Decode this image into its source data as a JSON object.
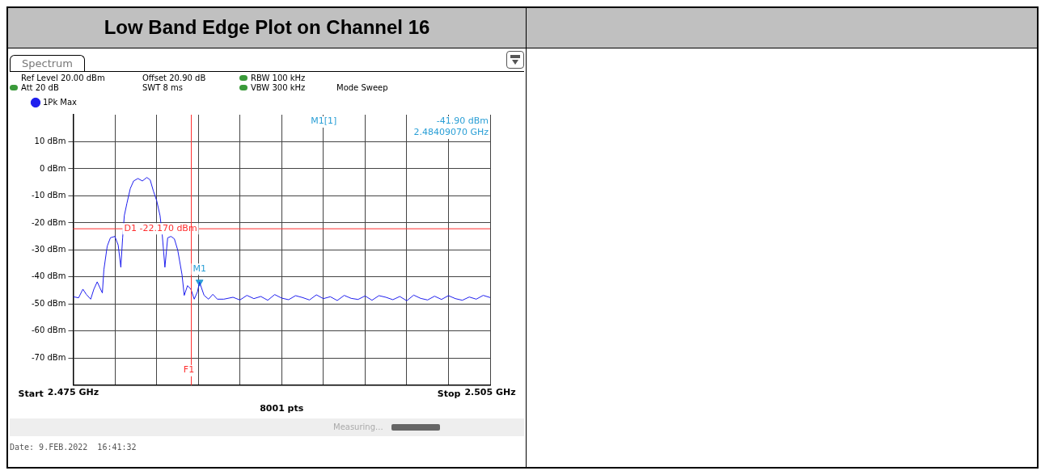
{
  "chart_data": {
    "type": "line",
    "title": "Low Band Edge Plot on Channel 16",
    "subtitle": "Spectrum",
    "xlim": [
      2.475,
      2.505
    ],
    "xticks": [
      {
        "value": 2.475,
        "label": "2.475 GHz"
      },
      {
        "value": 2.478,
        "label": null
      },
      {
        "value": 2.481,
        "label": null
      },
      {
        "value": 2.484,
        "label": null
      },
      {
        "value": 2.487,
        "label": null
      },
      {
        "value": 2.49,
        "label": null
      },
      {
        "value": 2.493,
        "label": null
      },
      {
        "value": 2.496,
        "label": null
      },
      {
        "value": 2.499,
        "label": null
      },
      {
        "value": 2.502,
        "label": null
      },
      {
        "value": 2.505,
        "label": "2.505 GHz"
      }
    ],
    "ylim": [
      -80,
      20
    ],
    "yticks": [
      {
        "value": 10,
        "label": "10 dBm"
      },
      {
        "value": 0,
        "label": "0 dBm"
      },
      {
        "value": -10,
        "label": "-10 dBm"
      },
      {
        "value": -20,
        "label": "-20 dBm"
      },
      {
        "value": -30,
        "label": "-30 dBm"
      },
      {
        "value": -40,
        "label": "-40 dBm"
      },
      {
        "value": -50,
        "label": "-50 dBm"
      },
      {
        "value": -60,
        "label": "-60 dBm"
      },
      {
        "value": -70,
        "label": "-70 dBm"
      }
    ],
    "grid": true,
    "legend": "top left",
    "marker": "none",
    "line_style": "solid",
    "series": [
      {
        "name": "1Pk Max",
        "color": "#1f1fee",
        "x": [
          2.475,
          2.47539,
          2.4757,
          2.47594,
          2.47626,
          2.47649,
          2.47673,
          2.47697,
          2.4771,
          2.47721,
          2.47745,
          2.47768,
          2.478,
          2.47824,
          2.47843,
          2.47856,
          2.47868,
          2.47887,
          2.47911,
          2.47935,
          2.47966,
          2.47998,
          2.4803,
          2.48054,
          2.48077,
          2.48101,
          2.48125,
          2.48141,
          2.4816,
          2.4818,
          2.48204,
          2.48228,
          2.48252,
          2.48283,
          2.48299,
          2.48323,
          2.48347,
          2.48371,
          2.48394,
          2.4840907,
          2.48442,
          2.48474,
          2.48505,
          2.48537,
          2.48584,
          2.4865,
          2.487,
          2.4875,
          2.488,
          2.4885,
          2.489,
          2.4895,
          2.49,
          2.4905,
          2.491,
          2.4915,
          2.492,
          2.4925,
          2.493,
          2.4935,
          2.494,
          2.4945,
          2.495,
          2.4955,
          2.496,
          2.4965,
          2.497,
          2.4975,
          2.498,
          2.4985,
          2.499,
          2.4995,
          2.5,
          2.5005,
          2.501,
          2.5015,
          2.502,
          2.5025,
          2.503,
          2.5035,
          2.504,
          2.5045,
          2.505
        ],
        "values": [
          -47.3,
          -47.7,
          -44.5,
          -46.4,
          -48.2,
          -44.5,
          -41.8,
          -44.5,
          -45.9,
          -37.3,
          -28.6,
          -25.5,
          -25,
          -28.2,
          -36.4,
          -25.5,
          -17.3,
          -12.7,
          -7.3,
          -4.5,
          -3.6,
          -4.5,
          -3.2,
          -4.1,
          -8.2,
          -11.8,
          -17.3,
          -24.5,
          -36.4,
          -25.5,
          -25,
          -25.9,
          -30,
          -39.1,
          -46.8,
          -43.2,
          -44.5,
          -48.2,
          -45.5,
          -41.9,
          -46.8,
          -48.2,
          -46.4,
          -48.2,
          -48.2,
          -47.5,
          -48.5,
          -46.8,
          -48,
          -47.2,
          -48.6,
          -46.5,
          -47.8,
          -48.4,
          -46.9,
          -47.6,
          -48.5,
          -46.6,
          -48,
          -47.3,
          -48.7,
          -46.8,
          -47.9,
          -48.3,
          -47,
          -48.6,
          -46.9,
          -47.5,
          -48.4,
          -47.2,
          -48.8,
          -46.7,
          -47.9,
          -48.5,
          -47.1,
          -48.3,
          -46.9,
          -48,
          -48.6,
          -47.4,
          -48.2,
          -46.8,
          -47.6
        ]
      },
      {
        "type": "scatter",
        "marker": "triangle",
        "color": "#2a9fd6",
        "x": [
          2.4840907
        ],
        "values": [
          -41.9
        ]
      }
    ],
    "ref_lines": [
      {
        "axis": "y",
        "value": -22.17,
        "label": "D1 -22.170 dBm",
        "color": "#ff3030",
        "line_style": "solid"
      },
      {
        "axis": "x",
        "value": 2.4835,
        "label": "F1",
        "color": "#ff3030",
        "line_style": "solid"
      }
    ],
    "annotations": [
      "Ref Level 20.00 dBm",
      "Offset 20.90 dB",
      "RBW 100 kHz",
      "Att 20 dB",
      "SWT 8 ms",
      "VBW 300 kHz",
      "Mode Sweep",
      "M1[1]",
      "-41.90 dBm",
      "2.48409070 GHz",
      {
        "text": "M1",
        "x": 2.4840907,
        "y": -41.9
      },
      "8001 pts",
      "Measuring...",
      "Date: 9.FEB.2022  16:41:32",
      "Start",
      "Stop"
    ]
  }
}
